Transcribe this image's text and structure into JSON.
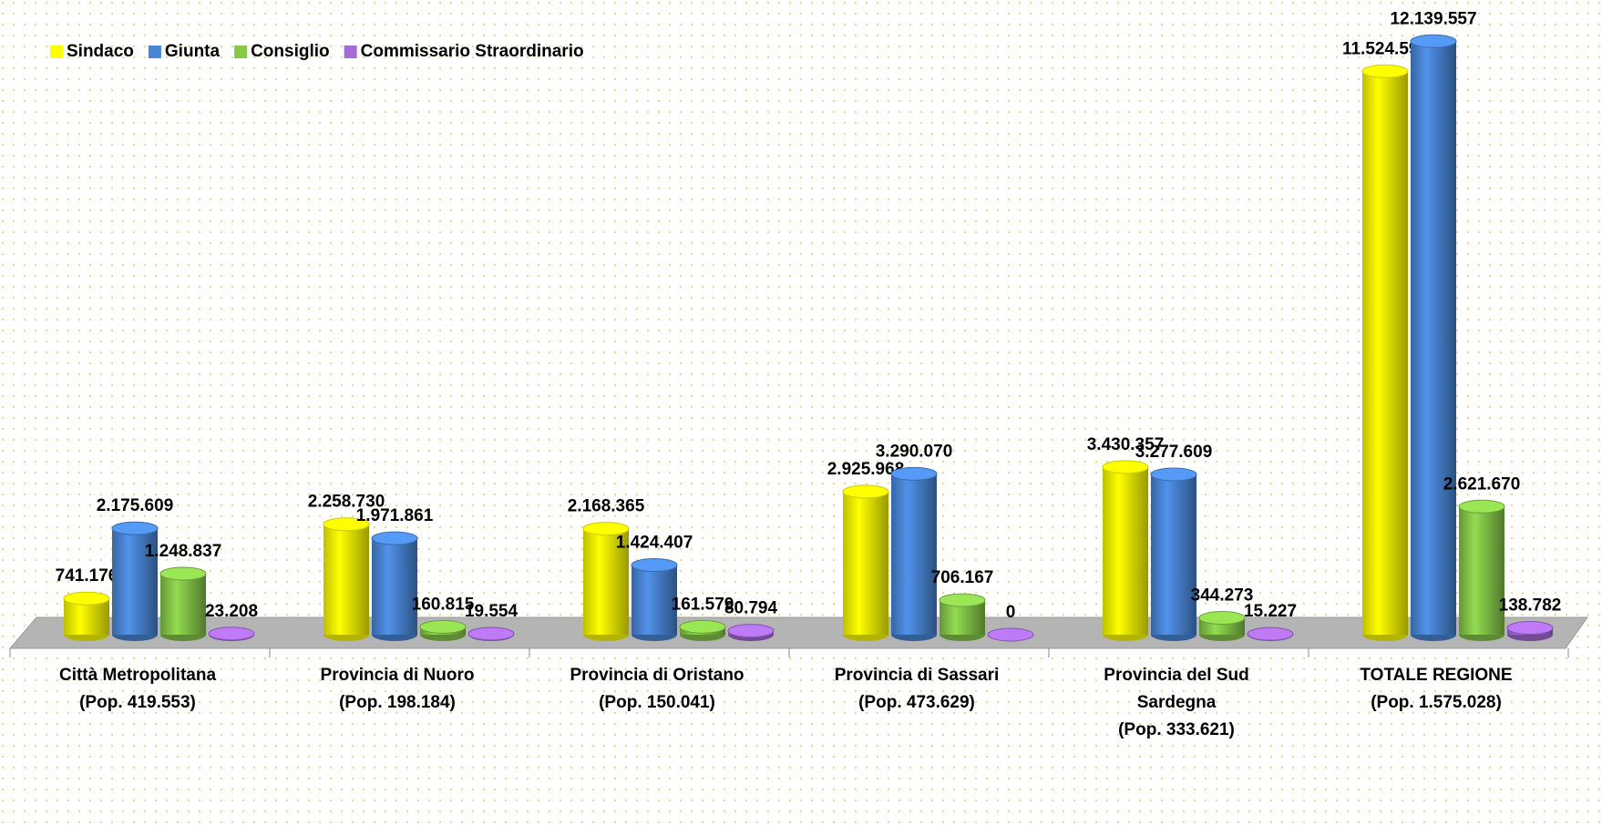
{
  "chart_data": {
    "type": "bar3d",
    "categories": [
      [
        "Città Metropolitana",
        "(Pop. 419.553)"
      ],
      [
        "Provincia di Nuoro",
        "(Pop. 198.184)"
      ],
      [
        "Provincia di Oristano",
        "(Pop. 150.041)"
      ],
      [
        "Provincia di Sassari",
        "(Pop. 473.629)"
      ],
      [
        "Provincia del Sud",
        "Sardegna",
        "(Pop. 333.621)"
      ],
      [
        "TOTALE REGIONE",
        "(Pop. 1.575.028)"
      ]
    ],
    "series": [
      {
        "name": "Sindaco",
        "color": "#ffff00",
        "values": [
          741176,
          2258730,
          2168365,
          2925968,
          3430357,
          11524597
        ],
        "value_labels": [
          "741.176",
          "2.258.730",
          "2.168.365",
          "2.925.968",
          "3.430.357",
          "11.524.597"
        ]
      },
      {
        "name": "Giunta",
        "color": "#4a86d6",
        "values": [
          2175609,
          1971861,
          1424407,
          3290070,
          3277609,
          12139557
        ],
        "value_labels": [
          "2.175.609",
          "1.971.861",
          "1.424.407",
          "3.290.070",
          "3.277.609",
          "12.139.557"
        ]
      },
      {
        "name": "Consiglio",
        "color": "#86c84a",
        "values": [
          1248837,
          160815,
          161579,
          706167,
          344273,
          2621670
        ],
        "value_labels": [
          "1.248.837",
          "160.815",
          "161.579",
          "706.167",
          "344.273",
          "2.621.670"
        ]
      },
      {
        "name": "Commissario Straordinario",
        "color": "#a66ad8",
        "values": [
          23208,
          19554,
          80794,
          0,
          15227,
          138782
        ],
        "value_labels": [
          "23.208",
          "19.554",
          "80.794",
          "0",
          "15.227",
          "138.782"
        ]
      }
    ],
    "ylim": [
      0,
      12200000
    ],
    "legend": "top-left"
  }
}
